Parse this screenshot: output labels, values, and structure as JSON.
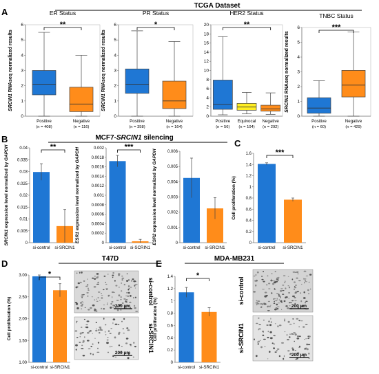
{
  "panels": {
    "A": "A",
    "B": "B",
    "C": "C",
    "D": "D",
    "E": "E"
  },
  "headers": {
    "tcga": "TCGA Dataset",
    "mcf7_prefix": "MCF7-",
    "mcf7_gene": "SRCIN1",
    "mcf7_suffix": " silencing",
    "t47d": "T47D",
    "mda": "MDA-MB231"
  },
  "images": {
    "scale": "200 µm",
    "si_control": "si-control",
    "si_srcin1": "si-SRCIN1"
  },
  "chart_data": [
    {
      "id": "er",
      "type": "box",
      "title": "ER Status",
      "ylabel_gene": "SRCIN1",
      "ylabel_rest": " RNAseq normalized results",
      "ylim": [
        0,
        6
      ],
      "yticks": [
        0,
        1,
        2,
        3,
        4,
        5,
        6
      ],
      "significance": "**",
      "sig_between": [
        0,
        1
      ],
      "groups": [
        {
          "label": "Positive",
          "n": "(n = 408)",
          "color": "#1f77d4",
          "min": 0,
          "q1": 1.4,
          "median": 2.1,
          "q3": 3.0,
          "max": 5.5
        },
        {
          "label": "Negative",
          "n": "(n = 116)",
          "color": "#ff8c1a",
          "min": 0,
          "q1": 0.3,
          "median": 0.8,
          "q3": 1.9,
          "max": 4.0
        }
      ]
    },
    {
      "id": "pr",
      "type": "box",
      "title": "PR Status",
      "ylabel_gene": "SRCIN1",
      "ylabel_rest": " RNAseq normalized results",
      "ylim": [
        0,
        6
      ],
      "yticks": [
        0,
        1,
        2,
        3,
        4,
        5,
        6
      ],
      "significance": "*",
      "sig_between": [
        0,
        1
      ],
      "groups": [
        {
          "label": "Positive",
          "n": "(n = 358)",
          "color": "#1f77d4",
          "min": 0,
          "q1": 1.5,
          "median": 2.1,
          "q3": 3.1,
          "max": 5.6
        },
        {
          "label": "Negative",
          "n": "(n = 164)",
          "color": "#ff8c1a",
          "min": 0,
          "q1": 0.5,
          "median": 1.0,
          "q3": 2.3,
          "max": 4.9
        }
      ]
    },
    {
      "id": "her2",
      "type": "box",
      "title": "HER2 Status",
      "ylabel_gene": "",
      "ylabel_rest": "",
      "ylim": [
        0,
        20
      ],
      "yticks": [
        0,
        2,
        4,
        6,
        8,
        10,
        12,
        14,
        16,
        18,
        20
      ],
      "significance": "**",
      "sig_between": [
        0,
        2
      ],
      "groups": [
        {
          "label": "Positive",
          "n": "(n = 56)",
          "color": "#1f77d4",
          "min": 0.3,
          "q1": 1.5,
          "median": 2.6,
          "q3": 7.9,
          "max": 17.4
        },
        {
          "label": "Equivocal",
          "n": "(n = 104)",
          "color": "#ffee22",
          "min": 0.5,
          "q1": 1.3,
          "median": 2.0,
          "q3": 2.8,
          "max": 5.2
        },
        {
          "label": "Negative",
          "n": "(n = 292)",
          "color": "#ff8c1a",
          "min": 0.4,
          "q1": 1.1,
          "median": 1.6,
          "q3": 2.4,
          "max": 5.1
        }
      ]
    },
    {
      "id": "tnbc",
      "type": "box",
      "title": "TNBC Status",
      "ylabel_gene": "SRCIN1",
      "ylabel_rest": " RNAseq normalized results",
      "ylim": [
        0,
        6
      ],
      "yticks": [
        0,
        1,
        2,
        3,
        4,
        5,
        6
      ],
      "significance": "***",
      "sig_between": [
        0,
        1
      ],
      "groups": [
        {
          "label": "Positive",
          "n": "(n = 60)",
          "color": "#1f77d4",
          "min": 0,
          "q1": 0.2,
          "median": 0.55,
          "q3": 1.25,
          "max": 2.4
        },
        {
          "label": "Negative",
          "n": "(n = 429)",
          "color": "#ff8c1a",
          "min": 0,
          "q1": 1.3,
          "median": 2.1,
          "q3": 3.1,
          "max": 5.7
        }
      ]
    },
    {
      "id": "srcin1",
      "type": "bar",
      "ylabel_gene": "SRCIN1",
      "ylabel_rest": " expression level normalized by ",
      "ylabel_norm": "GAPDH",
      "ylim": [
        0,
        0.04
      ],
      "yticks": [
        "0",
        "0.005",
        "0.01",
        "0.015",
        "0.02",
        "0.025",
        "0.03",
        "0.035",
        "0.04"
      ],
      "significance": "**",
      "categories": [
        "si-control",
        "si-SRCIN1"
      ],
      "values": [
        0.0298,
        0.007
      ],
      "errors": [
        0.0035,
        0.007
      ],
      "colors": [
        "#1f77d4",
        "#ff8c1a"
      ]
    },
    {
      "id": "esr1",
      "type": "bar",
      "ylabel_gene": "ESR1",
      "ylabel_rest": " expression level normalized by ",
      "ylabel_norm": "GAPDH",
      "ylim": [
        0,
        0.002
      ],
      "yticks": [
        "0",
        "0.0002",
        "0.0004",
        "0.0006",
        "0.0008",
        "0.001",
        "0.0012",
        "0.0014",
        "0.0016",
        "0.0018",
        "0.002"
      ],
      "significance": "***",
      "categories": [
        "si-control",
        "si-SCRIN1"
      ],
      "values": [
        0.00172,
        3e-05
      ],
      "errors": [
        0.00012,
        4e-05
      ],
      "colors": [
        "#1f77d4",
        "#ff8c1a"
      ]
    },
    {
      "id": "esr2",
      "type": "bar",
      "ylabel_gene": "ESR2",
      "ylabel_rest": " expression level normalized by ",
      "ylabel_norm": "GAPDH",
      "ylim": [
        0,
        0.006
      ],
      "yticks": [
        "0",
        "0.001",
        "0.002",
        "0.003",
        "0.004",
        "0.005",
        "0.006"
      ],
      "significance": "",
      "categories": [
        "si-control",
        "si-SRCIN1"
      ],
      "values": [
        0.00425,
        0.00225
      ],
      "errors": [
        0.0013,
        0.0007
      ],
      "colors": [
        "#1f77d4",
        "#ff8c1a"
      ]
    },
    {
      "id": "c_prolif",
      "type": "bar",
      "ylabel_gene": "",
      "ylabel_rest": "Cell proliferation (%)",
      "ylabel_norm": "",
      "ylim": [
        0,
        1.6
      ],
      "yticks": [
        "0",
        "0.2",
        "0.4",
        "0.6",
        "0.8",
        "1",
        "1.2",
        "1.4",
        "1.6"
      ],
      "significance": "***",
      "categories": [
        "si-control",
        "si-SRCIN1"
      ],
      "values": [
        1.41,
        0.77
      ],
      "errors": [
        0.02,
        0.03
      ],
      "colors": [
        "#1f77d4",
        "#ff8c1a"
      ]
    },
    {
      "id": "t47d_prolif",
      "type": "bar",
      "ylabel_gene": "",
      "ylabel_rest": "Cell proliferation (%)",
      "ylabel_norm": "",
      "ylim": [
        1.0,
        3.0
      ],
      "yticks": [
        "1.00",
        "1.50",
        "2.00",
        "2.50",
        "3.00"
      ],
      "significance": "*",
      "categories": [
        "si-control",
        "si-SRCIN1"
      ],
      "values": [
        2.97,
        2.65
      ],
      "errors": [
        0.1,
        0.15
      ],
      "colors": [
        "#1f77d4",
        "#ff8c1a"
      ]
    },
    {
      "id": "mda_prolif",
      "type": "bar",
      "ylabel_gene": "",
      "ylabel_rest": "Cell proliferation (%)",
      "ylabel_norm": "",
      "ylim": [
        0,
        1.4
      ],
      "yticks": [
        "0",
        "0.2",
        "0.4",
        "0.6",
        "0.8",
        "1",
        "1.2",
        "1.4"
      ],
      "significance": "*",
      "categories": [
        "si-control",
        "si-SRCIN1"
      ],
      "values": [
        1.14,
        0.82
      ],
      "errors": [
        0.08,
        0.07
      ],
      "colors": [
        "#1f77d4",
        "#ff8c1a"
      ]
    }
  ]
}
